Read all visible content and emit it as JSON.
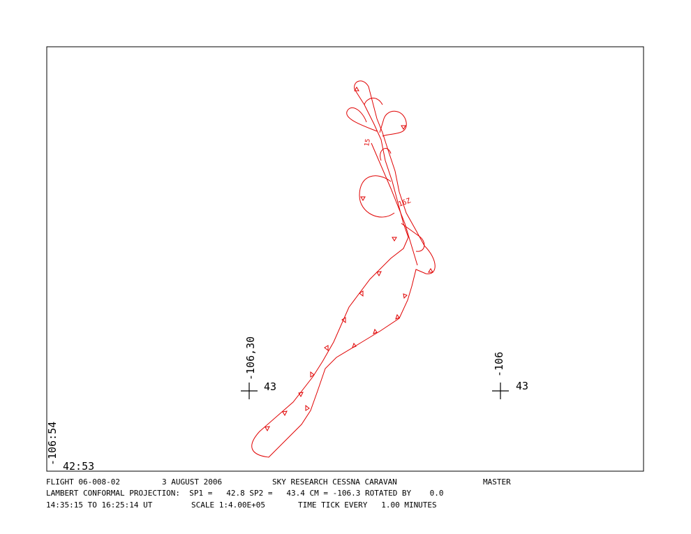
{
  "map": {
    "grid_labels": [
      {
        "lon": "-106,30",
        "lat": "43"
      },
      {
        "lon": "-106",
        "lat": "43"
      }
    ],
    "corner": {
      "lon": "-106:54",
      "lat": "42:53"
    },
    "time_labels": [
      "16Z",
      "15"
    ]
  },
  "footer": {
    "flight": "FLIGHT 06-008-02",
    "date": "3 AUGUST 2006",
    "aircraft": "SKY RESEARCH CESSNA CARAVAN",
    "mode": "MASTER",
    "projection": "LAMBERT CONFORMAL PROJECTION:  SP1 =   42.8 SP2 =   43.4 CM = -106.3 ROTATED BY    0.0",
    "time_range": "14:35:15 TO 16:25:14 UT",
    "scale": "SCALE 1:4.00E+05",
    "tick": "TIME TICK EVERY   1.00 MINUTES"
  }
}
